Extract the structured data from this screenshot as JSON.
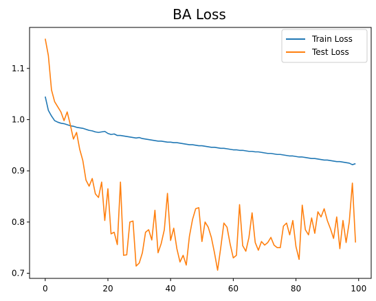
{
  "chart_data": {
    "type": "line",
    "title": "BA Loss",
    "xlabel": "",
    "ylabel": "",
    "xlim": [
      -5,
      104
    ],
    "ylim": [
      0.69,
      1.18
    ],
    "xticks": [
      0,
      20,
      40,
      60,
      80,
      100
    ],
    "yticks": [
      0.7,
      0.8,
      0.9,
      1.0,
      1.1
    ],
    "ytick_labels": [
      "0.7",
      "0.8",
      "0.9",
      "1.0",
      "1.1"
    ],
    "grid": false,
    "legend_position": "top-right",
    "x": [
      0,
      1,
      2,
      3,
      4,
      5,
      6,
      7,
      8,
      9,
      10,
      11,
      12,
      13,
      14,
      15,
      16,
      17,
      18,
      19,
      20,
      21,
      22,
      23,
      24,
      25,
      26,
      27,
      28,
      29,
      30,
      31,
      32,
      33,
      34,
      35,
      36,
      37,
      38,
      39,
      40,
      41,
      42,
      43,
      44,
      45,
      46,
      47,
      48,
      49,
      50,
      51,
      52,
      53,
      54,
      55,
      56,
      57,
      58,
      59,
      60,
      61,
      62,
      63,
      64,
      65,
      66,
      67,
      68,
      69,
      70,
      71,
      72,
      73,
      74,
      75,
      76,
      77,
      78,
      79,
      80,
      81,
      82,
      83,
      84,
      85,
      86,
      87,
      88,
      89,
      90,
      91,
      92,
      93,
      94,
      95,
      96,
      97,
      98,
      99
    ],
    "series": [
      {
        "name": "Train Loss",
        "color": "#1f77b4",
        "values": [
          1.045,
          1.018,
          1.007,
          0.998,
          0.995,
          0.993,
          0.992,
          0.99,
          0.988,
          0.987,
          0.985,
          0.984,
          0.983,
          0.981,
          0.979,
          0.978,
          0.976,
          0.975,
          0.976,
          0.977,
          0.973,
          0.971,
          0.972,
          0.969,
          0.969,
          0.968,
          0.967,
          0.966,
          0.965,
          0.964,
          0.965,
          0.963,
          0.962,
          0.961,
          0.96,
          0.959,
          0.958,
          0.958,
          0.957,
          0.956,
          0.956,
          0.955,
          0.955,
          0.954,
          0.953,
          0.952,
          0.951,
          0.951,
          0.95,
          0.949,
          0.949,
          0.948,
          0.947,
          0.946,
          0.946,
          0.945,
          0.944,
          0.944,
          0.943,
          0.942,
          0.941,
          0.941,
          0.94,
          0.94,
          0.939,
          0.938,
          0.938,
          0.937,
          0.937,
          0.936,
          0.935,
          0.934,
          0.934,
          0.933,
          0.932,
          0.932,
          0.931,
          0.93,
          0.929,
          0.929,
          0.928,
          0.927,
          0.927,
          0.926,
          0.925,
          0.924,
          0.924,
          0.923,
          0.922,
          0.921,
          0.921,
          0.92,
          0.919,
          0.918,
          0.918,
          0.917,
          0.916,
          0.915,
          0.912,
          0.914
        ]
      },
      {
        "name": "Test Loss",
        "color": "#ff7f0e",
        "values": [
          1.158,
          1.125,
          1.058,
          1.035,
          1.025,
          1.015,
          0.998,
          1.015,
          0.99,
          0.962,
          0.975,
          0.942,
          0.92,
          0.882,
          0.87,
          0.885,
          0.855,
          0.848,
          0.878,
          0.803,
          0.865,
          0.777,
          0.78,
          0.756,
          0.878,
          0.735,
          0.736,
          0.8,
          0.802,
          0.714,
          0.72,
          0.74,
          0.78,
          0.785,
          0.765,
          0.823,
          0.74,
          0.758,
          0.785,
          0.856,
          0.764,
          0.788,
          0.748,
          0.722,
          0.735,
          0.716,
          0.772,
          0.805,
          0.826,
          0.828,
          0.762,
          0.8,
          0.79,
          0.77,
          0.74,
          0.706,
          0.75,
          0.798,
          0.79,
          0.757,
          0.73,
          0.735,
          0.834,
          0.754,
          0.743,
          0.77,
          0.818,
          0.76,
          0.745,
          0.762,
          0.755,
          0.76,
          0.77,
          0.755,
          0.75,
          0.75,
          0.792,
          0.798,
          0.775,
          0.803,
          0.752,
          0.727,
          0.833,
          0.785,
          0.775,
          0.808,
          0.778,
          0.82,
          0.81,
          0.826,
          0.803,
          0.787,
          0.768,
          0.81,
          0.748,
          0.803,
          0.76,
          0.8,
          0.876,
          0.76
        ]
      }
    ]
  }
}
